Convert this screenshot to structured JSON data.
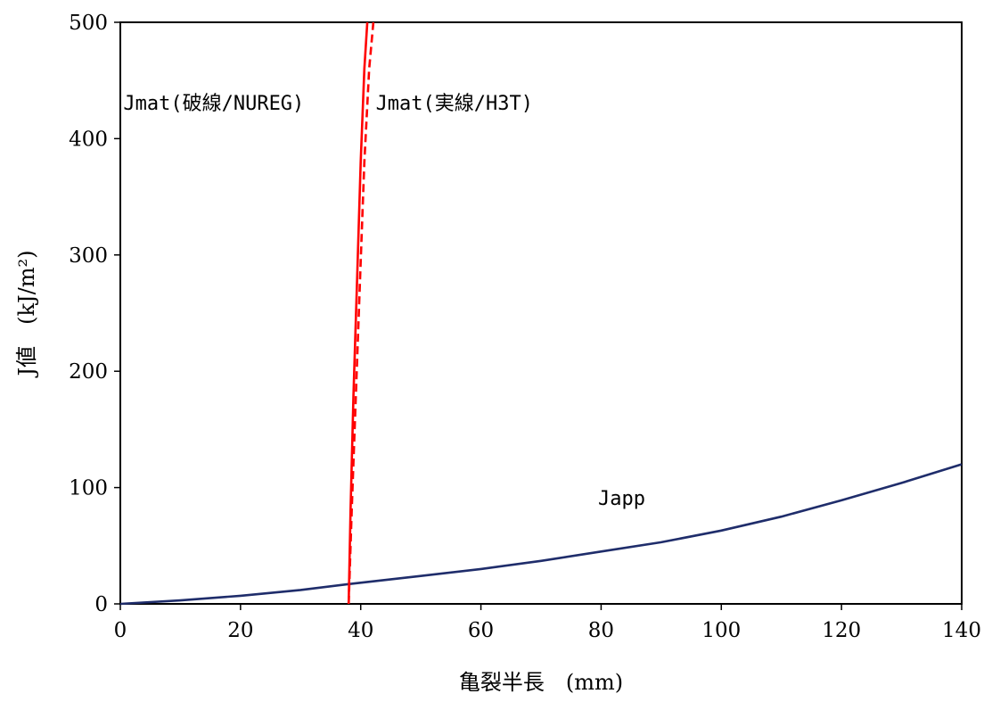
{
  "chart_data": {
    "type": "line",
    "title": "",
    "xlabel": "亀裂半長　(mm)",
    "ylabel": "J値　(kJ/m²)",
    "xlim": [
      0,
      140
    ],
    "ylim": [
      0,
      500
    ],
    "xticks": [
      0,
      20,
      40,
      60,
      80,
      100,
      120,
      140
    ],
    "yticks": [
      0,
      100,
      200,
      300,
      400,
      500
    ],
    "grid": false,
    "series": [
      {
        "name": "Japp",
        "color": "#1f2d6b",
        "style": "solid",
        "x": [
          0,
          10,
          20,
          30,
          38,
          50,
          60,
          70,
          80,
          90,
          100,
          110,
          120,
          130,
          140
        ],
        "y": [
          0,
          3,
          7,
          12,
          17,
          24,
          30,
          37,
          45,
          53,
          63,
          75,
          89,
          104,
          120
        ]
      },
      {
        "name": "Jmat(実線/H3T)",
        "color": "#ff0000",
        "style": "solid",
        "x": [
          38,
          38.3,
          38.8,
          39.4,
          40.0,
          40.6,
          41.1
        ],
        "y": [
          0,
          80,
          180,
          280,
          380,
          460,
          500
        ]
      },
      {
        "name": "Jmat(破線/NUREG)",
        "color": "#ff0000",
        "style": "dashed",
        "x": [
          38,
          38.5,
          39.2,
          39.9,
          40.6,
          41.4,
          42.1
        ],
        "y": [
          0,
          80,
          180,
          280,
          380,
          460,
          500
        ]
      }
    ],
    "annotations": [
      {
        "text": "Jmat(破線/NUREG)",
        "x": 0.5,
        "y": 425
      },
      {
        "text": "Jmat(実線/H3T)",
        "x": 42.5,
        "y": 425
      },
      {
        "text": "Japp",
        "x": 79.5,
        "y": 85
      }
    ]
  }
}
